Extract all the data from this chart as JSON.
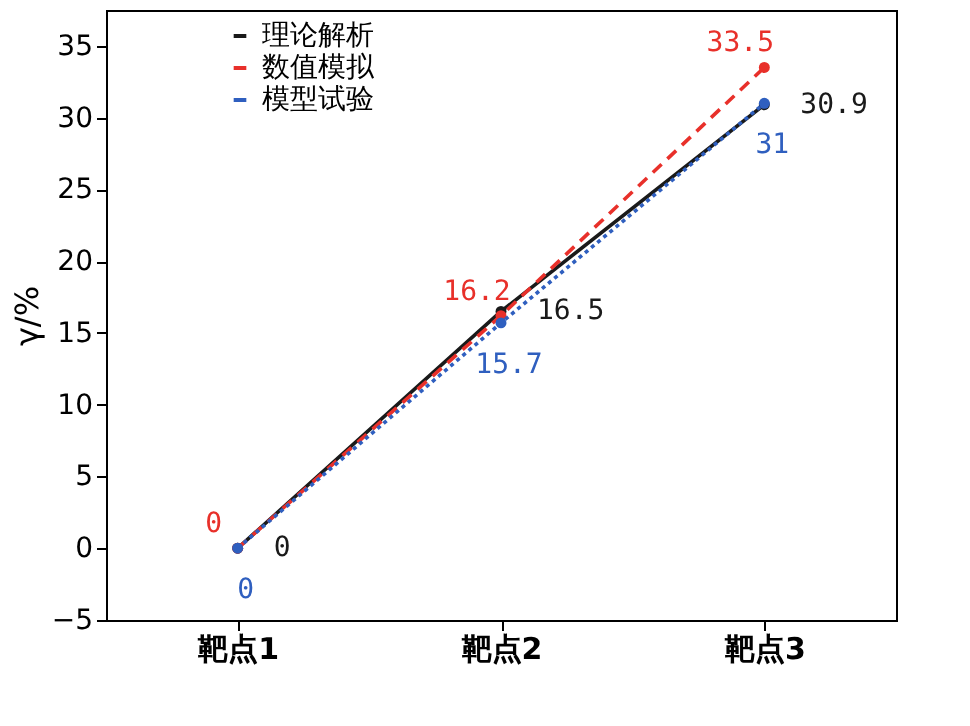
{
  "chart_data": {
    "type": "line",
    "ylabel": "γ/%",
    "categories": [
      "靶点1",
      "靶点2",
      "靶点3"
    ],
    "series": [
      {
        "name": "理论解析",
        "color": "#1a1a1a",
        "line_style": "solid",
        "values": [
          0,
          16.5,
          30.9
        ]
      },
      {
        "name": "数值模拟",
        "color": "#e8302a",
        "line_style": "dashed",
        "values": [
          0,
          16.2,
          33.5
        ]
      },
      {
        "name": "模型试验",
        "color": "#2f5fbf",
        "line_style": "dotted",
        "values": [
          0,
          15.7,
          31
        ]
      }
    ],
    "ylim": [
      -5,
      37.5
    ],
    "yticks": [
      -5,
      0,
      5,
      10,
      15,
      20,
      25,
      30,
      35
    ],
    "marker": "circle",
    "data_labels": true,
    "legend": "top left",
    "grid": false
  }
}
